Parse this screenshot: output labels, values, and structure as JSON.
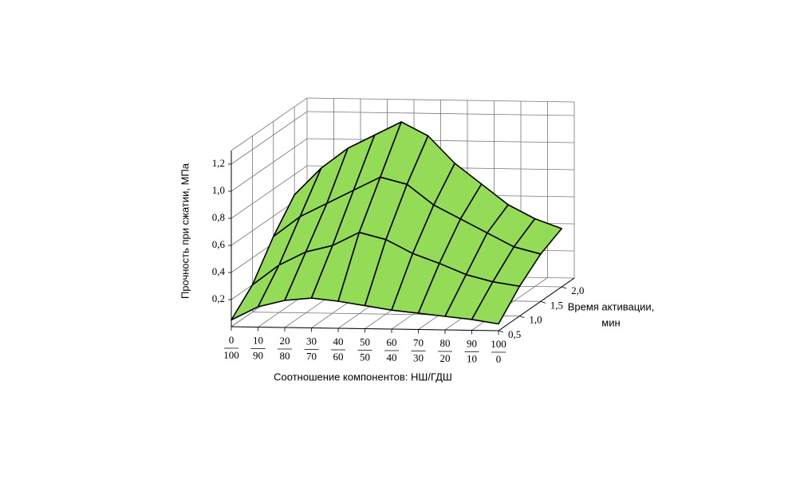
{
  "chart_data": {
    "type": "surface",
    "xlabel": "Соотношение компонентов: НШ/ГДШ",
    "ylabel": [
      "Время активации,",
      "мин"
    ],
    "zlabel": "Прочность при сжатии, МПа",
    "categories": [
      [
        "0",
        "100"
      ],
      [
        "10",
        "90"
      ],
      [
        "20",
        "80"
      ],
      [
        "30",
        "70"
      ],
      [
        "40",
        "60"
      ],
      [
        "50",
        "50"
      ],
      [
        "60",
        "40"
      ],
      [
        "70",
        "30"
      ],
      [
        "80",
        "20"
      ],
      [
        "90",
        "10"
      ],
      [
        "100",
        "0"
      ]
    ],
    "ylim": [
      0.5,
      2.3
    ],
    "yticks": [
      {
        "value": 0.5,
        "label": "0,5"
      },
      {
        "value": 1.0,
        "label": "1,0"
      },
      {
        "value": 1.5,
        "label": "1,5"
      },
      {
        "value": 2.0,
        "label": "2,0"
      }
    ],
    "zlim": [
      0,
      1.3
    ],
    "zticks": [
      {
        "value": 0.2,
        "label": "0,2"
      },
      {
        "value": 0.4,
        "label": "0,4"
      },
      {
        "value": 0.6,
        "label": "0,6"
      },
      {
        "value": 0.8,
        "label": "0,8"
      },
      {
        "value": 1.0,
        "label": "1,0"
      },
      {
        "value": 1.2,
        "label": "1,2"
      }
    ],
    "color": "#94dc58",
    "series": [
      {
        "y": 0.5,
        "values": [
          0.05,
          0.15,
          0.2,
          0.22,
          0.2,
          0.17,
          0.14,
          0.12,
          0.1,
          0.08,
          0.05
        ]
      },
      {
        "y": 1.0,
        "values": [
          0.2,
          0.35,
          0.45,
          0.5,
          0.6,
          0.55,
          0.45,
          0.38,
          0.3,
          0.25,
          0.22
        ]
      },
      {
        "y": 1.5,
        "values": [
          0.45,
          0.6,
          0.7,
          0.8,
          0.9,
          0.85,
          0.7,
          0.6,
          0.5,
          0.4,
          0.35
        ]
      },
      {
        "y": 2.0,
        "values": [
          0.65,
          0.85,
          1.0,
          1.1,
          1.2,
          1.1,
          0.9,
          0.75,
          0.6,
          0.5,
          0.43
        ]
      }
    ],
    "grid": true
  }
}
